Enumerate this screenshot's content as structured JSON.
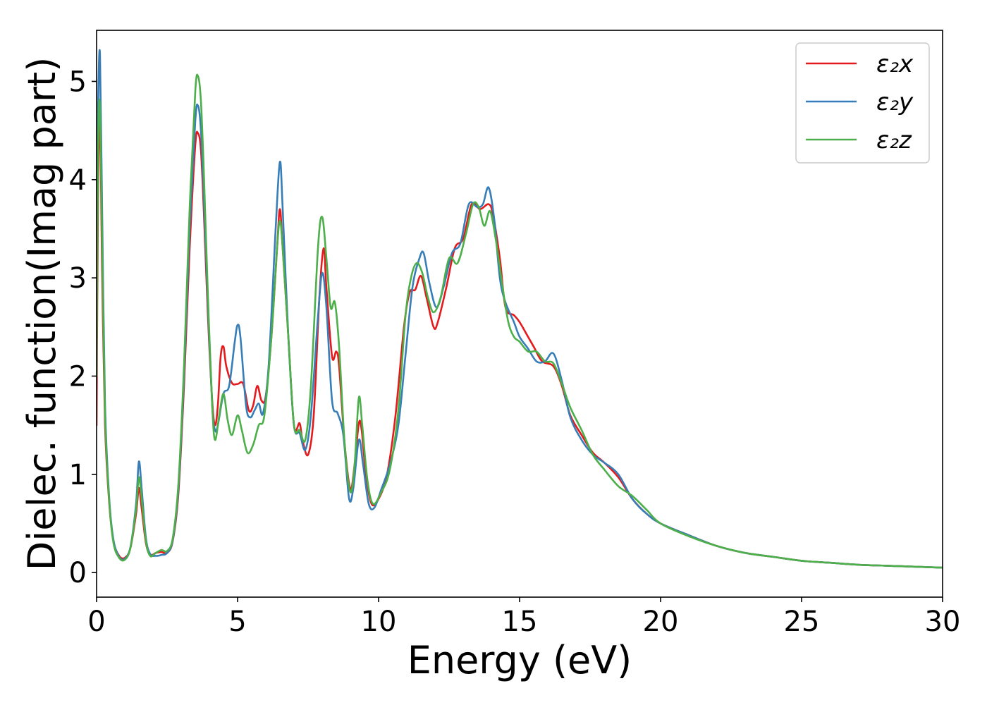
{
  "chart_data": {
    "type": "line",
    "title": "",
    "xlabel": "Energy (eV)",
    "ylabel": "Dielec. function(Imag part)",
    "xlim": [
      0,
      30
    ],
    "ylim": [
      -0.25,
      5.52
    ],
    "xticks": [
      0,
      5,
      10,
      15,
      20,
      25,
      30
    ],
    "yticks": [
      0,
      1,
      2,
      3,
      4,
      5
    ],
    "grid": false,
    "legend_position": "top-right",
    "series": [
      {
        "name": "ε₂x",
        "color": "#e41a1c",
        "points": [
          [
            0.0,
            1.5
          ],
          [
            0.05,
            3.8
          ],
          [
            0.12,
            4.6
          ],
          [
            0.2,
            3.0
          ],
          [
            0.3,
            1.5
          ],
          [
            0.45,
            0.7
          ],
          [
            0.6,
            0.32
          ],
          [
            0.8,
            0.17
          ],
          [
            1.0,
            0.15
          ],
          [
            1.2,
            0.25
          ],
          [
            1.4,
            0.6
          ],
          [
            1.5,
            0.86
          ],
          [
            1.6,
            0.65
          ],
          [
            1.75,
            0.3
          ],
          [
            1.9,
            0.18
          ],
          [
            2.1,
            0.2
          ],
          [
            2.3,
            0.21
          ],
          [
            2.5,
            0.2
          ],
          [
            2.7,
            0.32
          ],
          [
            2.9,
            0.8
          ],
          [
            3.1,
            1.9
          ],
          [
            3.3,
            3.3
          ],
          [
            3.5,
            4.35
          ],
          [
            3.6,
            4.47
          ],
          [
            3.7,
            4.3
          ],
          [
            3.8,
            3.7
          ],
          [
            3.95,
            2.6
          ],
          [
            4.1,
            1.75
          ],
          [
            4.2,
            1.5
          ],
          [
            4.3,
            1.7
          ],
          [
            4.4,
            2.2
          ],
          [
            4.5,
            2.3
          ],
          [
            4.6,
            2.1
          ],
          [
            4.8,
            1.93
          ],
          [
            5.0,
            1.92
          ],
          [
            5.2,
            1.92
          ],
          [
            5.4,
            1.65
          ],
          [
            5.55,
            1.7
          ],
          [
            5.7,
            1.9
          ],
          [
            5.85,
            1.75
          ],
          [
            6.0,
            1.8
          ],
          [
            6.2,
            2.4
          ],
          [
            6.4,
            3.3
          ],
          [
            6.5,
            3.7
          ],
          [
            6.6,
            3.3
          ],
          [
            6.8,
            2.4
          ],
          [
            7.0,
            1.5
          ],
          [
            7.2,
            1.52
          ],
          [
            7.3,
            1.35
          ],
          [
            7.5,
            1.2
          ],
          [
            7.7,
            1.6
          ],
          [
            7.9,
            2.8
          ],
          [
            8.05,
            3.3
          ],
          [
            8.15,
            2.9
          ],
          [
            8.35,
            2.2
          ],
          [
            8.5,
            2.25
          ],
          [
            8.6,
            2.1
          ],
          [
            8.8,
            1.3
          ],
          [
            9.0,
            0.85
          ],
          [
            9.15,
            1.1
          ],
          [
            9.3,
            1.52
          ],
          [
            9.4,
            1.45
          ],
          [
            9.55,
            1.0
          ],
          [
            9.75,
            0.7
          ],
          [
            10.0,
            0.75
          ],
          [
            10.3,
            1.0
          ],
          [
            10.6,
            1.6
          ],
          [
            10.9,
            2.5
          ],
          [
            11.1,
            2.85
          ],
          [
            11.3,
            2.88
          ],
          [
            11.5,
            3.02
          ],
          [
            11.7,
            2.8
          ],
          [
            11.95,
            2.5
          ],
          [
            12.1,
            2.55
          ],
          [
            12.4,
            2.9
          ],
          [
            12.7,
            3.3
          ],
          [
            13.0,
            3.4
          ],
          [
            13.3,
            3.75
          ],
          [
            13.6,
            3.7
          ],
          [
            13.9,
            3.75
          ],
          [
            14.05,
            3.65
          ],
          [
            14.3,
            3.2
          ],
          [
            14.5,
            2.7
          ],
          [
            14.8,
            2.62
          ],
          [
            15.0,
            2.55
          ],
          [
            15.3,
            2.4
          ],
          [
            15.5,
            2.3
          ],
          [
            15.8,
            2.15
          ],
          [
            16.2,
            2.1
          ],
          [
            16.5,
            1.9
          ],
          [
            16.8,
            1.6
          ],
          [
            17.2,
            1.4
          ],
          [
            17.6,
            1.22
          ],
          [
            18.0,
            1.12
          ],
          [
            18.5,
            0.97
          ],
          [
            19.0,
            0.75
          ],
          [
            19.5,
            0.6
          ],
          [
            20.0,
            0.5
          ],
          [
            21.0,
            0.38
          ],
          [
            22.0,
            0.27
          ],
          [
            23.0,
            0.2
          ],
          [
            24.0,
            0.16
          ],
          [
            25.0,
            0.12
          ],
          [
            26.0,
            0.1
          ],
          [
            27.0,
            0.08
          ],
          [
            28.0,
            0.07
          ],
          [
            29.0,
            0.06
          ],
          [
            30.0,
            0.05
          ]
        ]
      },
      {
        "name": "ε₂y",
        "color": "#377eb8",
        "points": [
          [
            0.0,
            2.5
          ],
          [
            0.05,
            4.6
          ],
          [
            0.12,
            5.28
          ],
          [
            0.2,
            3.6
          ],
          [
            0.3,
            1.7
          ],
          [
            0.45,
            0.75
          ],
          [
            0.6,
            0.33
          ],
          [
            0.8,
            0.16
          ],
          [
            1.0,
            0.14
          ],
          [
            1.2,
            0.26
          ],
          [
            1.4,
            0.7
          ],
          [
            1.5,
            1.13
          ],
          [
            1.6,
            0.85
          ],
          [
            1.75,
            0.35
          ],
          [
            1.9,
            0.19
          ],
          [
            2.1,
            0.17
          ],
          [
            2.3,
            0.18
          ],
          [
            2.5,
            0.2
          ],
          [
            2.7,
            0.33
          ],
          [
            2.9,
            0.85
          ],
          [
            3.1,
            2.0
          ],
          [
            3.3,
            3.5
          ],
          [
            3.5,
            4.6
          ],
          [
            3.6,
            4.75
          ],
          [
            3.7,
            4.5
          ],
          [
            3.8,
            3.85
          ],
          [
            3.95,
            2.7
          ],
          [
            4.1,
            1.7
          ],
          [
            4.2,
            1.45
          ],
          [
            4.3,
            1.5
          ],
          [
            4.5,
            1.82
          ],
          [
            4.7,
            1.9
          ],
          [
            4.9,
            2.35
          ],
          [
            5.0,
            2.52
          ],
          [
            5.1,
            2.4
          ],
          [
            5.3,
            1.7
          ],
          [
            5.45,
            1.58
          ],
          [
            5.6,
            1.65
          ],
          [
            5.75,
            1.72
          ],
          [
            5.9,
            1.62
          ],
          [
            6.1,
            2.1
          ],
          [
            6.35,
            3.5
          ],
          [
            6.5,
            4.18
          ],
          [
            6.6,
            3.7
          ],
          [
            6.8,
            2.4
          ],
          [
            7.0,
            1.5
          ],
          [
            7.2,
            1.42
          ],
          [
            7.4,
            1.25
          ],
          [
            7.6,
            1.6
          ],
          [
            7.85,
            2.6
          ],
          [
            8.0,
            3.05
          ],
          [
            8.15,
            2.7
          ],
          [
            8.35,
            1.75
          ],
          [
            8.55,
            1.62
          ],
          [
            8.75,
            1.4
          ],
          [
            8.95,
            0.76
          ],
          [
            9.1,
            0.85
          ],
          [
            9.3,
            1.35
          ],
          [
            9.45,
            1.1
          ],
          [
            9.65,
            0.7
          ],
          [
            9.85,
            0.66
          ],
          [
            10.1,
            0.85
          ],
          [
            10.4,
            1.1
          ],
          [
            10.7,
            1.5
          ],
          [
            10.95,
            2.2
          ],
          [
            11.2,
            2.9
          ],
          [
            11.45,
            3.2
          ],
          [
            11.6,
            3.25
          ],
          [
            11.8,
            2.95
          ],
          [
            12.05,
            2.7
          ],
          [
            12.3,
            2.9
          ],
          [
            12.6,
            3.25
          ],
          [
            12.9,
            3.35
          ],
          [
            13.2,
            3.75
          ],
          [
            13.5,
            3.72
          ],
          [
            13.7,
            3.75
          ],
          [
            13.9,
            3.92
          ],
          [
            14.1,
            3.6
          ],
          [
            14.3,
            3.0
          ],
          [
            14.5,
            2.75
          ],
          [
            14.8,
            2.55
          ],
          [
            15.0,
            2.4
          ],
          [
            15.3,
            2.28
          ],
          [
            15.6,
            2.15
          ],
          [
            15.9,
            2.15
          ],
          [
            16.2,
            2.23
          ],
          [
            16.5,
            1.95
          ],
          [
            16.8,
            1.58
          ],
          [
            17.2,
            1.35
          ],
          [
            17.6,
            1.2
          ],
          [
            18.0,
            1.12
          ],
          [
            18.5,
            1.0
          ],
          [
            19.0,
            0.75
          ],
          [
            19.5,
            0.6
          ],
          [
            20.0,
            0.5
          ],
          [
            21.0,
            0.38
          ],
          [
            22.0,
            0.27
          ],
          [
            23.0,
            0.2
          ],
          [
            24.0,
            0.16
          ],
          [
            25.0,
            0.12
          ],
          [
            26.0,
            0.1
          ],
          [
            27.0,
            0.08
          ],
          [
            28.0,
            0.07
          ],
          [
            29.0,
            0.06
          ],
          [
            30.0,
            0.05
          ]
        ]
      },
      {
        "name": "ε₂z",
        "color": "#4daf4a",
        "points": [
          [
            0.0,
            2.0
          ],
          [
            0.05,
            4.3
          ],
          [
            0.12,
            4.75
          ],
          [
            0.2,
            3.3
          ],
          [
            0.3,
            1.6
          ],
          [
            0.45,
            0.72
          ],
          [
            0.6,
            0.3
          ],
          [
            0.8,
            0.15
          ],
          [
            1.0,
            0.13
          ],
          [
            1.2,
            0.25
          ],
          [
            1.4,
            0.65
          ],
          [
            1.5,
            0.97
          ],
          [
            1.6,
            0.75
          ],
          [
            1.75,
            0.32
          ],
          [
            1.9,
            0.17
          ],
          [
            2.1,
            0.2
          ],
          [
            2.3,
            0.23
          ],
          [
            2.5,
            0.22
          ],
          [
            2.7,
            0.35
          ],
          [
            2.9,
            0.9
          ],
          [
            3.1,
            2.1
          ],
          [
            3.3,
            3.7
          ],
          [
            3.5,
            4.9
          ],
          [
            3.6,
            5.05
          ],
          [
            3.7,
            4.8
          ],
          [
            3.8,
            4.1
          ],
          [
            3.95,
            2.8
          ],
          [
            4.1,
            1.7
          ],
          [
            4.2,
            1.35
          ],
          [
            4.35,
            1.6
          ],
          [
            4.5,
            1.82
          ],
          [
            4.65,
            1.55
          ],
          [
            4.8,
            1.4
          ],
          [
            5.0,
            1.6
          ],
          [
            5.15,
            1.45
          ],
          [
            5.35,
            1.22
          ],
          [
            5.55,
            1.3
          ],
          [
            5.75,
            1.5
          ],
          [
            5.95,
            1.6
          ],
          [
            6.2,
            2.4
          ],
          [
            6.4,
            3.3
          ],
          [
            6.5,
            3.58
          ],
          [
            6.6,
            3.3
          ],
          [
            6.8,
            2.4
          ],
          [
            7.0,
            1.5
          ],
          [
            7.2,
            1.45
          ],
          [
            7.4,
            1.35
          ],
          [
            7.6,
            1.9
          ],
          [
            7.85,
            3.3
          ],
          [
            8.0,
            3.62
          ],
          [
            8.15,
            3.2
          ],
          [
            8.3,
            2.7
          ],
          [
            8.45,
            2.75
          ],
          [
            8.6,
            2.3
          ],
          [
            8.8,
            1.3
          ],
          [
            9.0,
            0.82
          ],
          [
            9.15,
            1.1
          ],
          [
            9.3,
            1.78
          ],
          [
            9.42,
            1.5
          ],
          [
            9.6,
            0.95
          ],
          [
            9.8,
            0.7
          ],
          [
            10.1,
            0.82
          ],
          [
            10.4,
            1.05
          ],
          [
            10.7,
            1.65
          ],
          [
            10.95,
            2.6
          ],
          [
            11.15,
            3.0
          ],
          [
            11.35,
            3.15
          ],
          [
            11.55,
            3.05
          ],
          [
            11.75,
            2.8
          ],
          [
            11.95,
            2.65
          ],
          [
            12.2,
            2.8
          ],
          [
            12.5,
            3.2
          ],
          [
            12.8,
            3.15
          ],
          [
            13.1,
            3.45
          ],
          [
            13.35,
            3.75
          ],
          [
            13.55,
            3.72
          ],
          [
            13.75,
            3.53
          ],
          [
            13.95,
            3.68
          ],
          [
            14.15,
            3.4
          ],
          [
            14.4,
            2.9
          ],
          [
            14.6,
            2.55
          ],
          [
            14.8,
            2.4
          ],
          [
            15.0,
            2.35
          ],
          [
            15.3,
            2.25
          ],
          [
            15.6,
            2.25
          ],
          [
            15.9,
            2.15
          ],
          [
            16.2,
            2.13
          ],
          [
            16.5,
            1.92
          ],
          [
            16.8,
            1.68
          ],
          [
            17.2,
            1.45
          ],
          [
            17.6,
            1.2
          ],
          [
            18.0,
            1.05
          ],
          [
            18.5,
            0.88
          ],
          [
            19.0,
            0.78
          ],
          [
            19.5,
            0.64
          ],
          [
            20.0,
            0.5
          ],
          [
            21.0,
            0.37
          ],
          [
            22.0,
            0.27
          ],
          [
            23.0,
            0.2
          ],
          [
            24.0,
            0.16
          ],
          [
            25.0,
            0.12
          ],
          [
            26.0,
            0.1
          ],
          [
            27.0,
            0.08
          ],
          [
            28.0,
            0.07
          ],
          [
            29.0,
            0.06
          ],
          [
            30.0,
            0.05
          ]
        ]
      }
    ]
  }
}
